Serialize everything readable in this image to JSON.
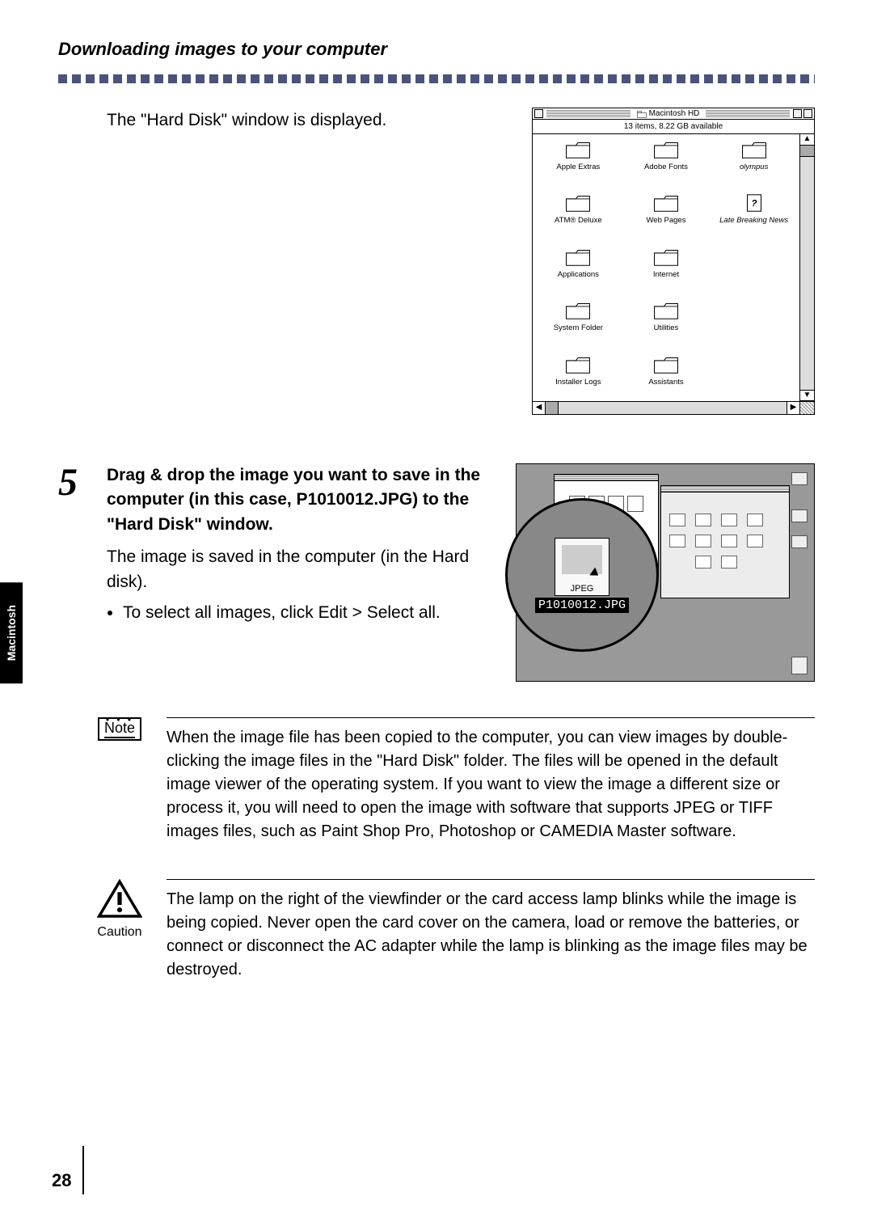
{
  "header": {
    "title": "Downloading images to your computer"
  },
  "intro": {
    "text": "The \"Hard Disk\" window is displayed."
  },
  "mac_window": {
    "title": "Macintosh HD",
    "status": "13 items, 8.22 GB available",
    "items": [
      {
        "label": "Apple Extras",
        "type": "folder"
      },
      {
        "label": "Adobe Fonts",
        "type": "folder"
      },
      {
        "label": "olympus",
        "type": "folder",
        "italic": true
      },
      {
        "label": "ATM® Deluxe",
        "type": "folder"
      },
      {
        "label": "Web Pages",
        "type": "folder"
      },
      {
        "label": "Late Breaking News",
        "type": "doc",
        "italic": true
      },
      {
        "label": "Applications",
        "type": "folder"
      },
      {
        "label": "Internet",
        "type": "folder"
      },
      {
        "label": "",
        "type": "blank"
      },
      {
        "label": "System Folder",
        "type": "folder"
      },
      {
        "label": "Utilities",
        "type": "folder"
      },
      {
        "label": "",
        "type": "blank"
      },
      {
        "label": "Installer Logs",
        "type": "folder"
      },
      {
        "label": "Assistants",
        "type": "folder"
      }
    ]
  },
  "step": {
    "number": "5",
    "instruction_bold": "Drag & drop the image you want to save in the computer (in this case, P1010012.JPG) to the \"Hard Disk\" window.",
    "result": "The image is saved in the computer (in the Hard disk).",
    "bullet": "To select all images, click Edit > Select all."
  },
  "drag_figure": {
    "jpeg_caption": "JPEG",
    "filename": "P1010012.JPG"
  },
  "side_tab": {
    "label": "Macintosh"
  },
  "note": {
    "label": "Note",
    "text": "When the image file has been copied to the computer, you can view images by double-clicking the image files in the \"Hard Disk\" folder. The files will be opened in the default image viewer of the operating system. If you want to view the image a different size or process it, you will need to open the image with software that supports JPEG or TIFF images files, such as Paint Shop Pro, Photoshop or CAMEDIA Master software."
  },
  "caution": {
    "label": "Caution",
    "text": "The lamp on the right of the viewfinder or the card access lamp blinks while the image is being copied. Never open the card cover on the camera, load or remove the batteries, or connect or disconnect the AC adapter while the lamp is blinking as the image files may be destroyed."
  },
  "page": {
    "number": "28"
  }
}
